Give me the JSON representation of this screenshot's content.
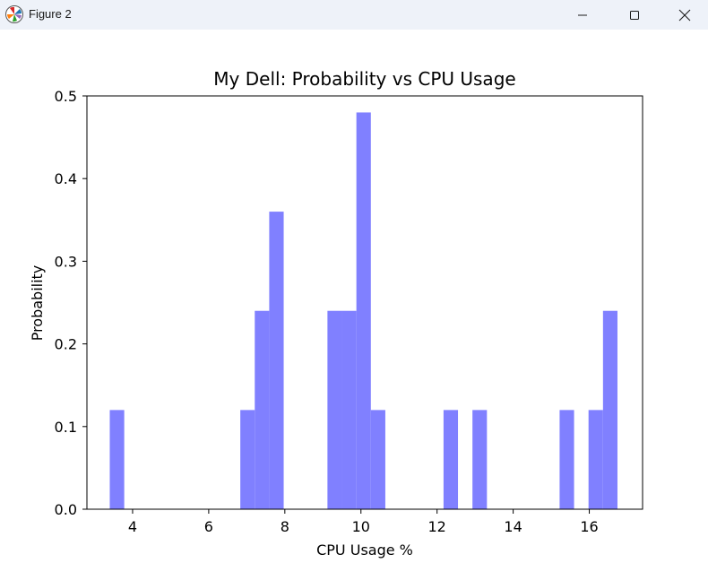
{
  "window": {
    "title": "Figure 2",
    "icons": [
      "matplotlib-app-icon",
      "minimize-icon",
      "maximize-icon",
      "close-icon"
    ]
  },
  "chart_data": {
    "type": "bar",
    "title": "My Dell: Probability vs CPU Usage",
    "xlabel": "CPU Usage %",
    "ylabel": "Probability",
    "xlim": [
      2.8,
      17.4
    ],
    "ylim": [
      0,
      0.5
    ],
    "xticks": [
      4,
      6,
      8,
      10,
      12,
      14,
      16
    ],
    "yticks": [
      0.0,
      0.1,
      0.2,
      0.3,
      0.4,
      0.5
    ],
    "xtick_labels": [
      "4",
      "6",
      "8",
      "10",
      "12",
      "14",
      "16"
    ],
    "ytick_labels": [
      "0.0",
      "0.1",
      "0.2",
      "0.3",
      "0.4",
      "0.5"
    ],
    "bar_color": "#8080ff",
    "grid": false,
    "series": [
      {
        "bars": [
          {
            "x0": 3.4,
            "x1": 3.78,
            "value": 0.12
          },
          {
            "x0": 6.83,
            "x1": 7.21,
            "value": 0.12
          },
          {
            "x0": 7.21,
            "x1": 7.59,
            "value": 0.24
          },
          {
            "x0": 7.59,
            "x1": 7.97,
            "value": 0.36
          },
          {
            "x0": 9.12,
            "x1": 9.5,
            "value": 0.24
          },
          {
            "x0": 9.5,
            "x1": 9.88,
            "value": 0.24
          },
          {
            "x0": 9.88,
            "x1": 10.26,
            "value": 0.48
          },
          {
            "x0": 10.26,
            "x1": 10.64,
            "value": 0.12
          },
          {
            "x0": 12.17,
            "x1": 12.55,
            "value": 0.12
          },
          {
            "x0": 12.93,
            "x1": 13.31,
            "value": 0.12
          },
          {
            "x0": 15.22,
            "x1": 15.6,
            "value": 0.12
          },
          {
            "x0": 15.98,
            "x1": 16.36,
            "value": 0.12
          },
          {
            "x0": 16.36,
            "x1": 16.74,
            "value": 0.24
          }
        ]
      }
    ]
  }
}
